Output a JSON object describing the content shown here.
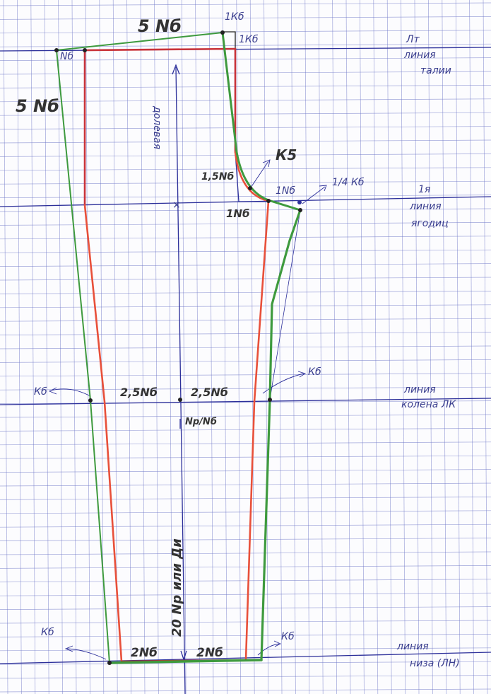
{
  "colors": {
    "grid": "#6f78c8",
    "construction": "#2c2f9a",
    "base_pattern": "#e8503a",
    "final_pattern": "#3e9a3e",
    "ink": "#333333"
  },
  "labels": {
    "top_width": "5 Nб",
    "left_side": "5 Nб",
    "waist_point": "Nб",
    "top_1kb_a": "1Кб",
    "top_1kb_b": "1Кб",
    "grain": "долевая",
    "k5": "К5",
    "n15": "1,5Nб",
    "n1_bottom": "1Nб",
    "n1_top": "1Nб",
    "quarter_kb": "1/4 Кб",
    "knee_left_kb": "Кб",
    "knee_right_kb": "Кб",
    "knee_left_25": "2,5Nб",
    "knee_right_25": "2,5Nб",
    "np_nb": "Nр/Nб",
    "leg_length": "20 Nр или Ди",
    "hem_left_kb": "Кб",
    "hem_right_kb": "Кб",
    "hem_left_2": "2Nб",
    "hem_right_2": "2Nб"
  },
  "lines": {
    "waist": [
      "Лт",
      "линия",
      "талии"
    ],
    "hip": [
      "1я",
      "линия",
      "ягодиц"
    ],
    "knee": [
      "линия",
      "колена ЛК"
    ],
    "hem": [
      "линия",
      "низа (ЛН)"
    ]
  }
}
